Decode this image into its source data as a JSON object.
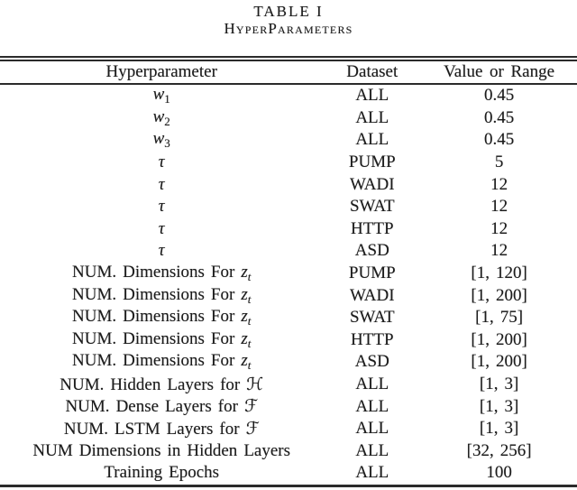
{
  "page": {
    "background": "#ffffff",
    "text_color": "#1c1c1c",
    "rule_color": "#2b2b2b"
  },
  "caption": {
    "line1": "TABLE I",
    "line2": "HyperParameters"
  },
  "table": {
    "headers": [
      "Hyperparameter",
      "Dataset",
      "Value or Range"
    ],
    "rows": [
      {
        "param": [
          [
            "w",
            "i"
          ],
          [
            "1",
            "sub"
          ]
        ],
        "dataset": "ALL",
        "value": "0.45"
      },
      {
        "param": [
          [
            "w",
            "i"
          ],
          [
            "2",
            "sub"
          ]
        ],
        "dataset": "ALL",
        "value": "0.45"
      },
      {
        "param": [
          [
            "w",
            "i"
          ],
          [
            "3",
            "sub"
          ]
        ],
        "dataset": "ALL",
        "value": "0.45"
      },
      {
        "param": [
          [
            "τ",
            "i"
          ]
        ],
        "dataset": "PUMP",
        "value": "5"
      },
      {
        "param": [
          [
            "τ",
            "i"
          ]
        ],
        "dataset": "WADI",
        "value": "12"
      },
      {
        "param": [
          [
            "τ",
            "i"
          ]
        ],
        "dataset": "SWAT",
        "value": "12"
      },
      {
        "param": [
          [
            "τ",
            "i"
          ]
        ],
        "dataset": "HTTP",
        "value": "12"
      },
      {
        "param": [
          [
            "τ",
            "i"
          ]
        ],
        "dataset": "ASD",
        "value": "12"
      },
      {
        "param": [
          [
            "NUM. Dimensions For ",
            "p"
          ],
          [
            "z",
            "i"
          ],
          [
            "t",
            "subi"
          ]
        ],
        "dataset": "PUMP",
        "value": "[1, 120]"
      },
      {
        "param": [
          [
            "NUM. Dimensions For ",
            "p"
          ],
          [
            "z",
            "i"
          ],
          [
            "t",
            "subi"
          ]
        ],
        "dataset": "WADI",
        "value": "[1, 200]"
      },
      {
        "param": [
          [
            "NUM. Dimensions For ",
            "p"
          ],
          [
            "z",
            "i"
          ],
          [
            "t",
            "subi"
          ]
        ],
        "dataset": "SWAT",
        "value": "[1, 75]"
      },
      {
        "param": [
          [
            "NUM. Dimensions For ",
            "p"
          ],
          [
            "z",
            "i"
          ],
          [
            "t",
            "subi"
          ]
        ],
        "dataset": "HTTP",
        "value": "[1, 200]"
      },
      {
        "param": [
          [
            "NUM. Dimensions For ",
            "p"
          ],
          [
            "z",
            "i"
          ],
          [
            "t",
            "subi"
          ]
        ],
        "dataset": "ASD",
        "value": "[1, 200]"
      },
      {
        "param": [
          [
            "NUM. Hidden Layers for ",
            "p"
          ],
          [
            "ℋ",
            "cal"
          ]
        ],
        "dataset": "ALL",
        "value": "[1, 3]"
      },
      {
        "param": [
          [
            "NUM. Dense Layers for ",
            "p"
          ],
          [
            "ℱ",
            "cal"
          ]
        ],
        "dataset": "ALL",
        "value": "[1, 3]"
      },
      {
        "param": [
          [
            "NUM. LSTM Layers for ",
            "p"
          ],
          [
            "ℱ",
            "cal"
          ]
        ],
        "dataset": "ALL",
        "value": "[1, 3]"
      },
      {
        "param": [
          [
            "NUM Dimensions in Hidden Layers",
            "p"
          ]
        ],
        "dataset": "ALL",
        "value": "[32, 256]"
      },
      {
        "param": [
          [
            "Training Epochs",
            "p"
          ]
        ],
        "dataset": "ALL",
        "value": "100"
      }
    ]
  }
}
